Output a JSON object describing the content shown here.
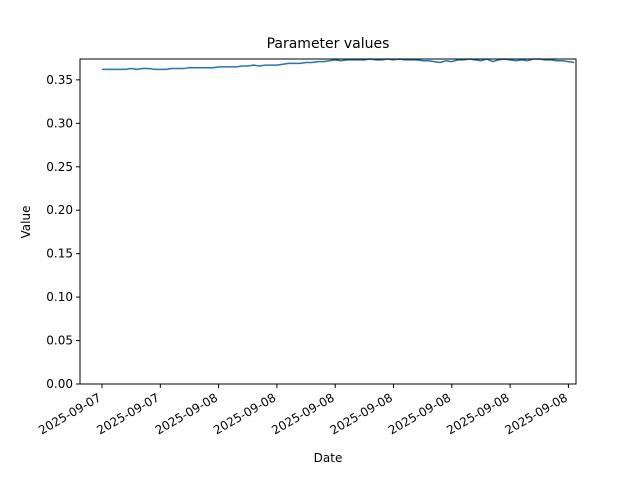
{
  "chart_data": {
    "type": "line",
    "title": "Parameter values",
    "x_label": "Date",
    "y_label": "Value",
    "categories": [
      "2025-09-07",
      null,
      null,
      null,
      null,
      null,
      null,
      null,
      null,
      null,
      "2025-09-07",
      null,
      null,
      null,
      null,
      null,
      null,
      null,
      null,
      null,
      "2025-09-08",
      null,
      null,
      null,
      null,
      null,
      null,
      null,
      null,
      null,
      "2025-09-08",
      null,
      null,
      null,
      null,
      null,
      null,
      null,
      null,
      null,
      "2025-09-08",
      null,
      null,
      null,
      null,
      null,
      null,
      null,
      null,
      null,
      "2025-09-08",
      null,
      null,
      null,
      null,
      null,
      null,
      null,
      null,
      null,
      "2025-09-08",
      null,
      null,
      null,
      null,
      null,
      null,
      null,
      null,
      null,
      "2025-09-08",
      null,
      null,
      null,
      null,
      null,
      null,
      null,
      null,
      null,
      "2025-09-08",
      null
    ],
    "series": [
      {
        "color": "#1f77b4",
        "values": [
          0.362,
          0.362,
          0.362,
          0.362,
          0.362,
          0.363,
          0.362,
          0.363,
          0.363,
          0.362,
          0.362,
          0.362,
          0.363,
          0.363,
          0.363,
          0.364,
          0.364,
          0.364,
          0.364,
          0.364,
          0.365,
          0.365,
          0.365,
          0.365,
          0.366,
          0.366,
          0.367,
          0.366,
          0.367,
          0.367,
          0.367,
          0.368,
          0.369,
          0.369,
          0.369,
          0.37,
          0.37,
          0.371,
          0.371,
          0.372,
          0.373,
          0.372,
          0.373,
          0.373,
          0.373,
          0.373,
          0.374,
          0.373,
          0.373,
          0.374,
          0.373,
          0.374,
          0.373,
          0.373,
          0.373,
          0.372,
          0.372,
          0.371,
          0.37,
          0.372,
          0.371,
          0.373,
          0.373,
          0.374,
          0.373,
          0.372,
          0.374,
          0.371,
          0.373,
          0.374,
          0.373,
          0.372,
          0.373,
          0.372,
          0.374,
          0.374,
          0.373,
          0.373,
          0.372,
          0.372,
          0.371,
          0.37
        ]
      }
    ],
    "ylim": [
      0,
      0.374
    ],
    "yticks": [
      {
        "value": 0,
        "label": "0.00"
      },
      {
        "value": 0.05,
        "label": "0.05"
      },
      {
        "value": 0.1,
        "label": "0.10"
      },
      {
        "value": 0.15,
        "label": "0.15"
      },
      {
        "value": 0.2,
        "label": "0.20"
      },
      {
        "value": 0.25,
        "label": "0.25"
      },
      {
        "value": 0.3,
        "label": "0.30"
      },
      {
        "value": 0.35,
        "label": "0.35"
      }
    ],
    "grid": false
  }
}
